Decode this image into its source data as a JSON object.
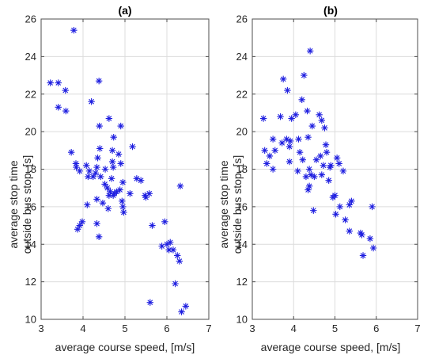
{
  "colors": {
    "marker": "#1f1fe0",
    "grid": "#dcdcdc",
    "frame": "#4d4d4d",
    "text": "#262626"
  },
  "chart_data": [
    {
      "type": "scatter",
      "title": "(a)",
      "xlabel": "average course speed, [m/s]",
      "ylabel": "average stop time\noutside bus stop, [s]",
      "xlim": [
        3,
        7
      ],
      "ylim": [
        10,
        26
      ],
      "xticks": [
        "3",
        "4",
        "5",
        "6",
        "7"
      ],
      "yticks": [
        "10",
        "12",
        "14",
        "16",
        "18",
        "20",
        "22",
        "24",
        "26"
      ],
      "grid": true,
      "marker": "asterisk",
      "x": [
        3.78,
        3.22,
        3.41,
        3.58,
        3.41,
        3.59,
        4.38,
        4.2,
        4.39,
        4.62,
        4.4,
        4.35,
        4.9,
        4.73,
        4.7,
        4.85,
        4.7,
        4.53,
        3.72,
        3.83,
        3.84,
        3.92,
        4.08,
        4.15,
        4.12,
        4.24,
        4.33,
        4.3,
        4.42,
        4.52,
        4.58,
        4.68,
        4.72,
        4.9,
        4.95,
        4.8,
        5.18,
        5.28,
        5.38,
        5.48,
        5.12,
        4.33,
        4.47,
        4.6,
        4.65,
        4.72,
        4.75,
        4.88,
        4.93,
        4.97,
        4.1,
        3.98,
        3.92,
        3.87,
        4.33,
        4.38,
        5.5,
        5.58,
        5.65,
        6.32,
        5.95,
        6.0,
        5.88,
        6.08,
        6.05,
        6.15,
        6.25,
        6.2,
        6.3,
        6.45,
        6.35,
        5.6,
        4.62,
        4.95
      ],
      "y": [
        25.4,
        22.6,
        22.6,
        22.2,
        21.3,
        21.1,
        22.7,
        21.6,
        20.3,
        20.7,
        19.1,
        18.6,
        20.3,
        19.7,
        19.0,
        18.8,
        18.4,
        18.0,
        18.9,
        18.3,
        18.1,
        17.9,
        18.2,
        17.9,
        17.6,
        17.6,
        18.1,
        17.8,
        17.6,
        17.2,
        17.0,
        17.5,
        18.1,
        18.3,
        17.3,
        16.8,
        19.2,
        17.5,
        17.4,
        16.6,
        16.7,
        16.4,
        16.2,
        15.9,
        16.8,
        16.6,
        16.7,
        16.9,
        16.3,
        15.7,
        16.1,
        15.2,
        15.0,
        14.8,
        15.1,
        14.4,
        16.5,
        16.7,
        15.0,
        17.1,
        15.2,
        14.0,
        13.9,
        14.1,
        13.7,
        13.7,
        13.4,
        11.9,
        13.1,
        10.7,
        10.4,
        10.9,
        16.6,
        16.0
      ]
    },
    {
      "type": "scatter",
      "title": "(b)",
      "xlabel": "average course speed, [m/s]",
      "ylabel": "average stop time\noutside bus stop, [s]",
      "xlim": [
        3,
        7
      ],
      "ylim": [
        10,
        26
      ],
      "xticks": [
        "3",
        "4",
        "5",
        "6",
        "7"
      ],
      "yticks": [
        "10",
        "12",
        "14",
        "16",
        "18",
        "20",
        "22",
        "24",
        "26"
      ],
      "grid": true,
      "marker": "asterisk",
      "x": [
        4.4,
        3.75,
        4.25,
        3.85,
        4.2,
        3.27,
        3.68,
        3.95,
        4.05,
        4.33,
        3.3,
        3.5,
        3.83,
        3.92,
        4.12,
        4.35,
        4.45,
        4.62,
        4.68,
        4.75,
        3.42,
        3.55,
        3.72,
        3.9,
        4.15,
        4.22,
        4.38,
        4.55,
        4.65,
        4.8,
        4.88,
        5.05,
        5.1,
        3.5,
        3.35,
        3.9,
        4.1,
        4.3,
        4.42,
        4.5,
        4.68,
        4.72,
        4.85,
        5.0,
        5.12,
        4.35,
        4.38,
        4.48,
        4.95,
        5.02,
        5.35,
        5.4,
        5.25,
        5.35,
        5.62,
        5.65,
        5.9,
        5.85,
        5.68,
        5.93,
        4.78,
        4.9,
        5.2
      ],
      "y": [
        24.3,
        22.8,
        23.0,
        22.2,
        21.7,
        20.7,
        20.8,
        20.7,
        20.9,
        21.1,
        19.0,
        19.6,
        19.6,
        19.5,
        19.6,
        19.7,
        20.3,
        20.9,
        20.6,
        20.2,
        18.7,
        19.0,
        19.4,
        19.2,
        18.9,
        18.5,
        18.0,
        18.5,
        18.7,
        18.9,
        18.1,
        18.6,
        18.3,
        18.0,
        18.3,
        18.4,
        17.9,
        17.6,
        17.7,
        17.6,
        17.7,
        18.2,
        17.4,
        16.6,
        16.0,
        16.9,
        17.1,
        15.8,
        16.5,
        15.6,
        16.1,
        16.3,
        15.3,
        14.7,
        14.6,
        14.5,
        16.0,
        14.3,
        13.4,
        13.8,
        19.3,
        18.2,
        17.9
      ]
    }
  ]
}
